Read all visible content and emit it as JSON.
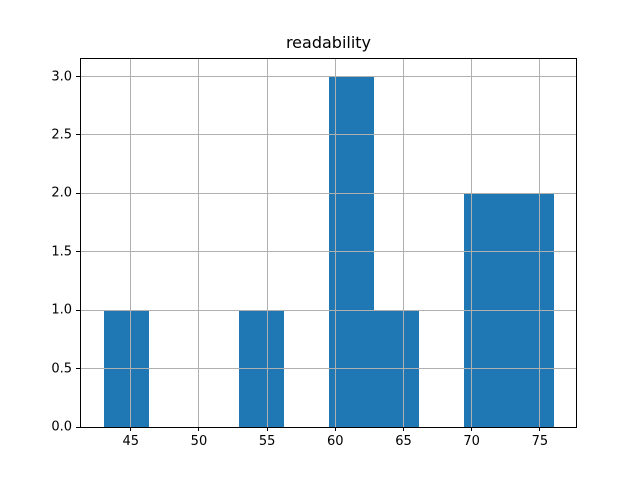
{
  "chart_data": {
    "type": "histogram",
    "title": "readability",
    "xlabel": "",
    "ylabel": "",
    "bin_edges": [
      43.0,
      46.3,
      49.6,
      52.9,
      56.2,
      59.5,
      62.8,
      66.1,
      69.4,
      72.7,
      76.0
    ],
    "counts": [
      1,
      0,
      0,
      1,
      0,
      3,
      1,
      0,
      2,
      2
    ],
    "xlim": [
      41.35,
      77.65
    ],
    "ylim": [
      0,
      3.15
    ],
    "xticks": [
      45,
      50,
      55,
      60,
      65,
      70,
      75
    ],
    "yticks": [
      0,
      0.5,
      1,
      1.5,
      2,
      2.5,
      3
    ],
    "xtick_labels": [
      "45",
      "50",
      "55",
      "60",
      "65",
      "70",
      "75"
    ],
    "ytick_labels": [
      "0.0",
      "0.5",
      "1.0",
      "1.5",
      "2.0",
      "2.5",
      "3.0"
    ],
    "bar_color": "#1f77b4",
    "grid": "on",
    "grid_color": "#b0b0b0",
    "spine_color": "#000000",
    "background_color": "#ffffff",
    "legend_position": "none"
  }
}
